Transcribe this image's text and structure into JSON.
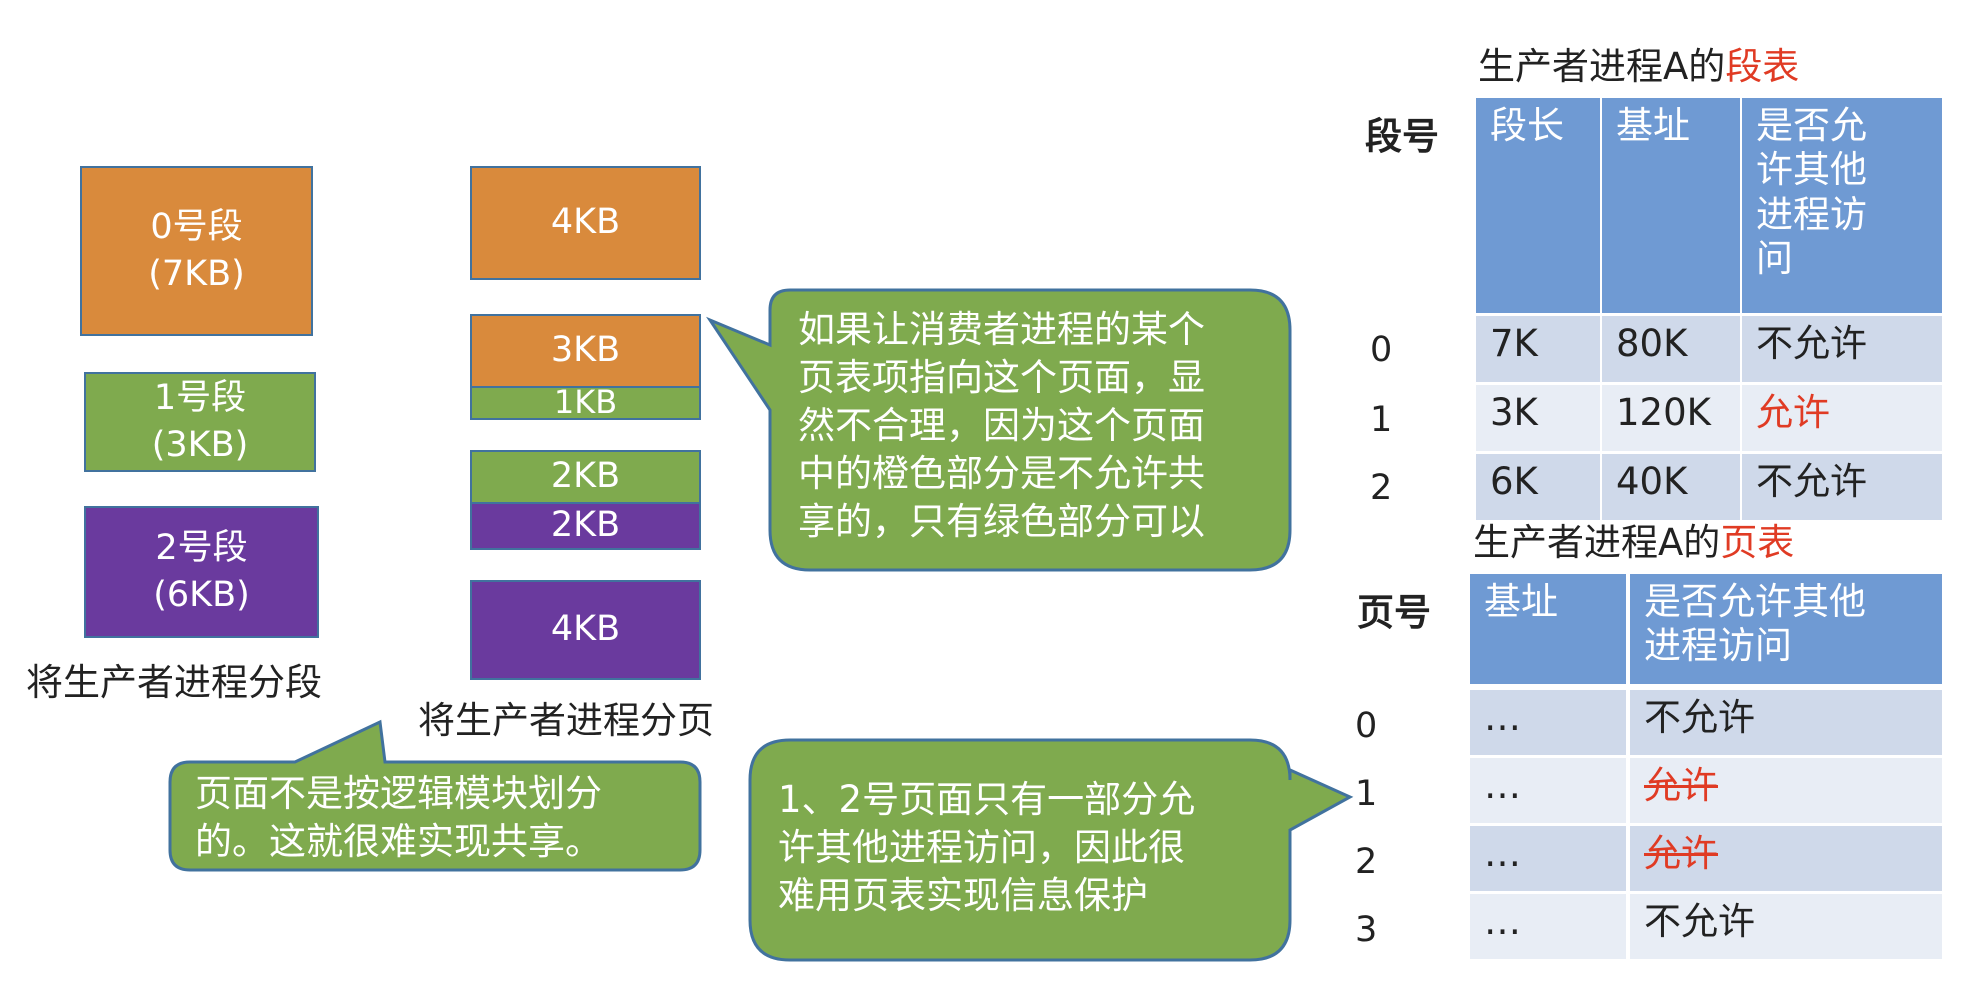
{
  "left": {
    "segments": [
      {
        "line1": "0号段",
        "line2": "(7KB)"
      },
      {
        "line1": "1号段",
        "line2": "(3KB)"
      },
      {
        "line1": "2号段",
        "line2": "(6KB)"
      }
    ],
    "seg_caption": "将生产者进程分段",
    "pages": [
      "4KB",
      "3KB",
      "1KB",
      "2KB",
      "2KB",
      "4KB"
    ],
    "page_caption": "将生产者进程分页"
  },
  "colors": {
    "orange": "#d98a3c",
    "green": "#7faa4e",
    "purple": "#6a3a9e",
    "header": "#6f9ad3",
    "highlight": "#e03b24"
  },
  "callouts": {
    "top": [
      "如果让消费者进程的某个",
      "页表项指向这个页面，显",
      "然不合理，因为这个页面",
      "中的橙色部分是不允许共",
      "享的，只有绿色部分可以"
    ],
    "left": [
      "页面不是按逻辑模块划分",
      "的。这就很难实现共享。"
    ],
    "bottom": [
      "1、2号页面只有一部分允",
      "许其他进程访问，因此很",
      "难用页表实现信息保护"
    ]
  },
  "segment_table": {
    "title_prefix": "生产者进程A的",
    "title_highlight": "段表",
    "row_header": "段号",
    "headers": [
      "段长",
      "基址",
      "是否允许其他进程访问"
    ],
    "header_lines": [
      "是否允",
      "许其他",
      "进程访",
      "问"
    ],
    "rows": [
      {
        "no": "0",
        "len": "7K",
        "base": "80K",
        "allow": "不允许"
      },
      {
        "no": "1",
        "len": "3K",
        "base": "120K",
        "allow": "允许"
      },
      {
        "no": "2",
        "len": "6K",
        "base": "40K",
        "allow": "不允许"
      }
    ]
  },
  "page_table": {
    "title_prefix": "生产者进程A的",
    "title_highlight": "页表",
    "row_header": "页号",
    "headers": [
      "基址",
      "是否允许其他进程访问"
    ],
    "header_lines": [
      "是否允许其他",
      "进程访问"
    ],
    "rows": [
      {
        "no": "0",
        "base": "…",
        "allow": "不允许"
      },
      {
        "no": "1",
        "base": "…",
        "allow": "允许"
      },
      {
        "no": "2",
        "base": "…",
        "allow": "允许"
      },
      {
        "no": "3",
        "base": "…",
        "allow": "不允许"
      }
    ]
  }
}
